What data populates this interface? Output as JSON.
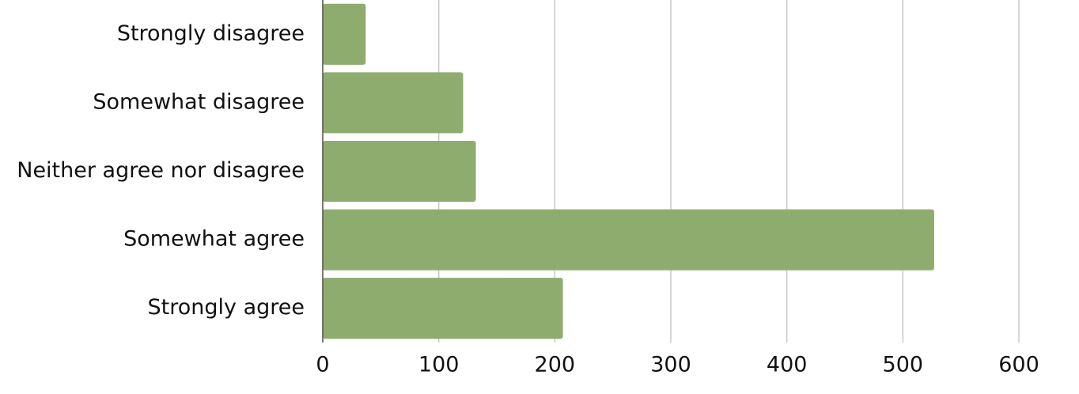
{
  "chart_data": {
    "type": "bar",
    "horizontal": true,
    "categories": [
      "Strongly disagree",
      "Somewhat disagree",
      "Neither agree nor disagree",
      "Somewhat agree",
      "Strongly agree"
    ],
    "values": [
      37,
      121,
      132,
      527,
      207
    ],
    "color": "#8fac6f",
    "xlim": [
      0,
      600
    ],
    "xticks": [
      0,
      100,
      200,
      300,
      400,
      500,
      600
    ],
    "grid": true
  }
}
